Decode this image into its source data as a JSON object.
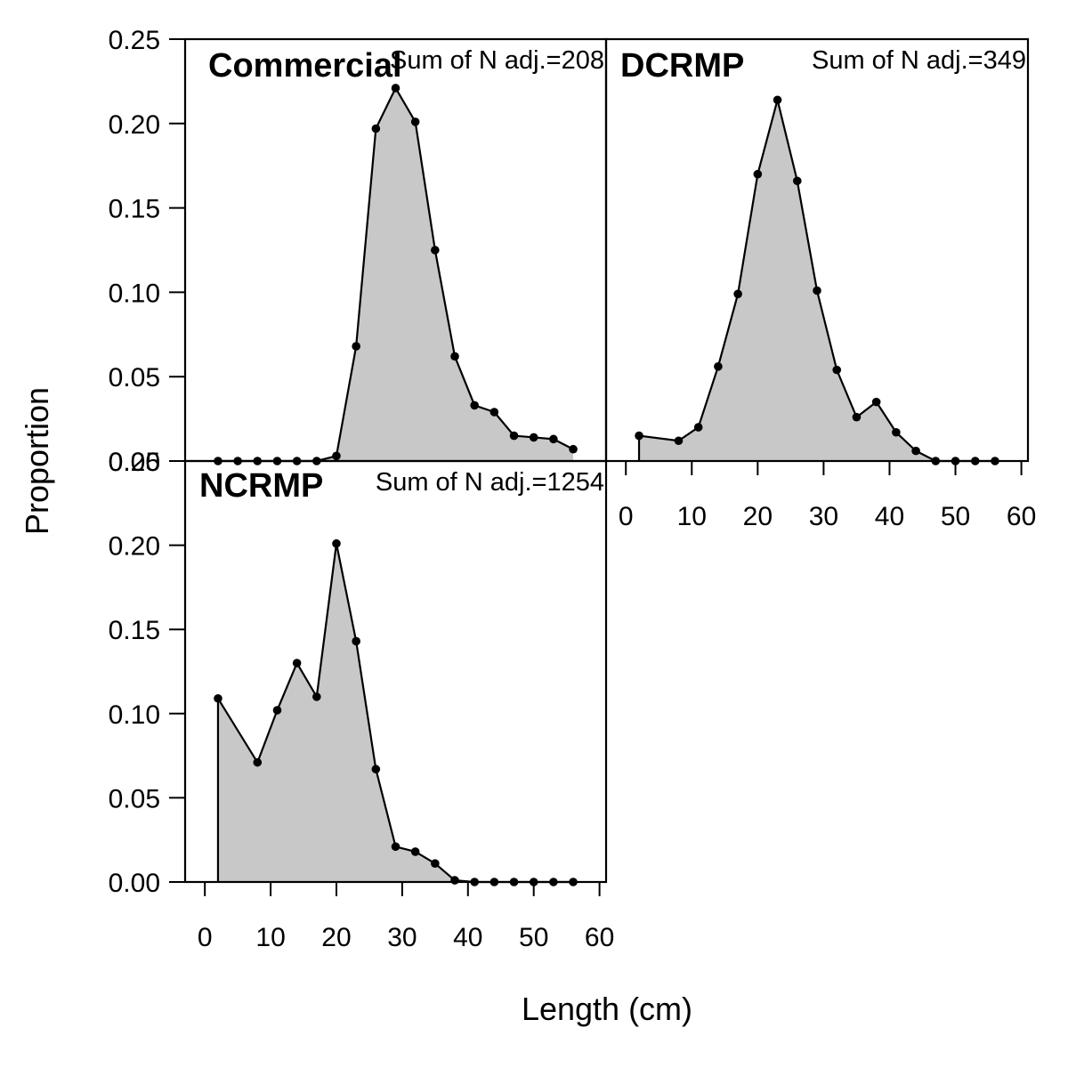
{
  "figure": {
    "ylabel": "Proportion",
    "xlabel": "Length (cm)"
  },
  "chart_data": [
    {
      "type": "area",
      "title": "Commercial",
      "annotation": "Sum of N adj.=208",
      "x": [
        2,
        5,
        8,
        11,
        14,
        17,
        20,
        23,
        26,
        29,
        32,
        35,
        38,
        41,
        44,
        47,
        50,
        53,
        56
      ],
      "values": [
        0.0,
        0.0,
        0.0,
        0.0,
        0.0,
        0.0,
        0.003,
        0.068,
        0.197,
        0.221,
        0.201,
        0.125,
        0.062,
        0.033,
        0.029,
        0.015,
        0.014,
        0.013,
        0.007
      ],
      "xlim": [
        -3,
        61
      ],
      "ylim": [
        0,
        0.25
      ],
      "xticks": [
        0,
        10,
        20,
        30,
        40,
        50,
        60
      ],
      "yticks": [
        "0.00",
        "0.05",
        "0.10",
        "0.15",
        "0.20",
        "0.25"
      ],
      "show_x_ticks": false,
      "show_y_ticks": true,
      "fill_color": "#c8c8c8",
      "line_color": "#000000"
    },
    {
      "type": "area",
      "title": "DCRMP",
      "annotation": "Sum of N adj.=349",
      "x": [
        2,
        8,
        11,
        14,
        17,
        20,
        23,
        26,
        29,
        32,
        35,
        38,
        41,
        44,
        47,
        50,
        53,
        56
      ],
      "values": [
        0.015,
        0.012,
        0.02,
        0.056,
        0.099,
        0.17,
        0.214,
        0.166,
        0.101,
        0.054,
        0.026,
        0.035,
        0.017,
        0.006,
        0.0,
        0.0,
        0.0,
        0.0
      ],
      "xlim": [
        -3,
        61
      ],
      "ylim": [
        0,
        0.25
      ],
      "xticks": [
        0,
        10,
        20,
        30,
        40,
        50,
        60
      ],
      "yticks": [
        "0.00",
        "0.05",
        "0.10",
        "0.15",
        "0.20",
        "0.25"
      ],
      "show_x_ticks": true,
      "show_y_ticks": false,
      "fill_color": "#c8c8c8",
      "line_color": "#000000"
    },
    {
      "type": "area",
      "title": "NCRMP",
      "annotation": "Sum of N adj.=1254",
      "x": [
        2,
        8,
        11,
        14,
        17,
        20,
        23,
        26,
        29,
        32,
        35,
        38,
        41,
        44,
        47,
        50,
        53,
        56
      ],
      "values": [
        0.109,
        0.071,
        0.102,
        0.13,
        0.11,
        0.201,
        0.143,
        0.067,
        0.021,
        0.018,
        0.011,
        0.001,
        0.0,
        0.0,
        0.0,
        0.0,
        0.0,
        0.0
      ],
      "xlim": [
        -3,
        61
      ],
      "ylim": [
        0,
        0.25
      ],
      "xticks": [
        0,
        10,
        20,
        30,
        40,
        50,
        60
      ],
      "yticks": [
        "0.00",
        "0.05",
        "0.10",
        "0.15",
        "0.20",
        "0.25"
      ],
      "show_x_ticks": true,
      "show_y_ticks": true,
      "fill_color": "#c8c8c8",
      "line_color": "#000000"
    }
  ]
}
